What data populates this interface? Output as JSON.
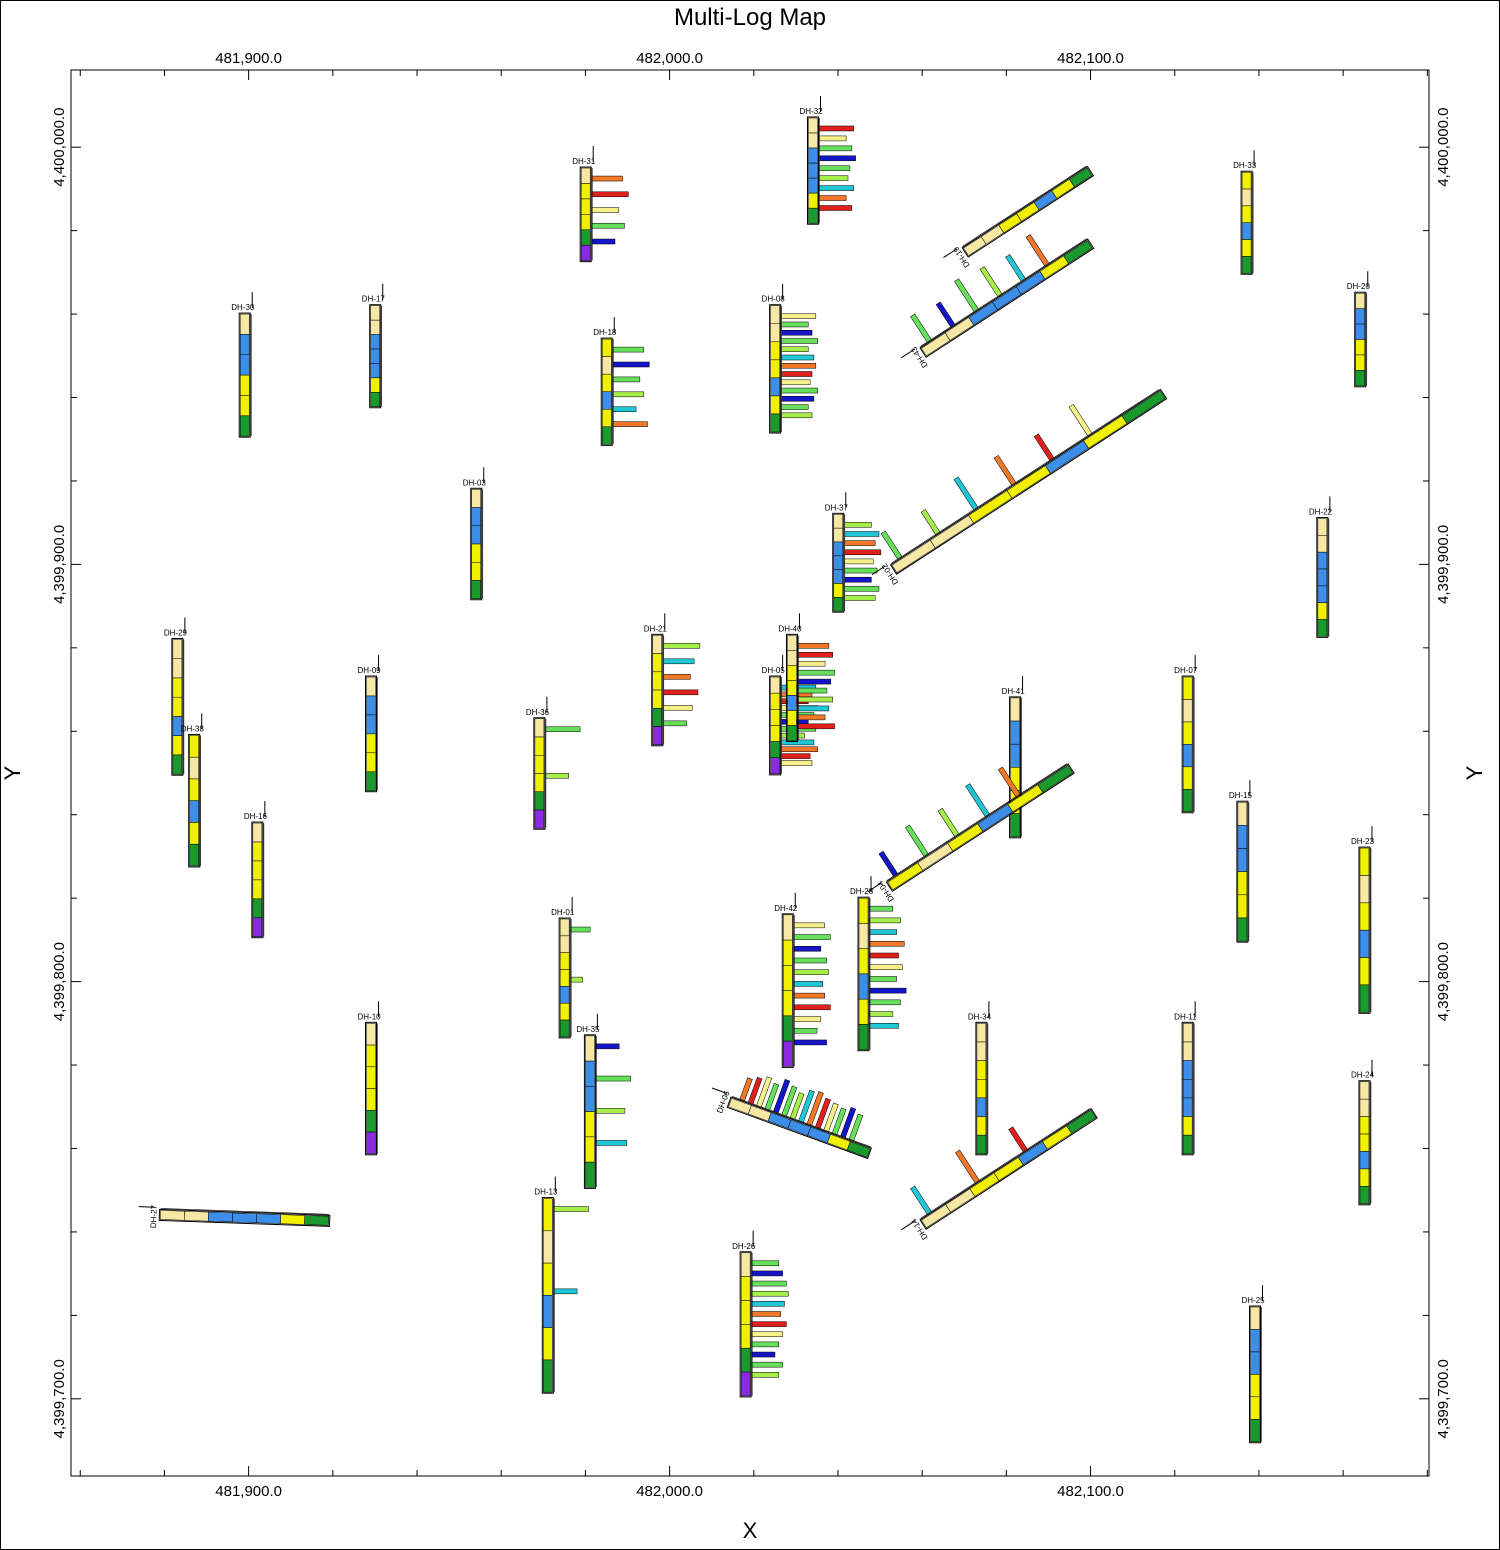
{
  "title": "Multi-Log Map",
  "colors": {
    "sand": "#f7e7a4",
    "yellow": "#f0f000",
    "blue": "#3d8ee8",
    "dark_blue": "#1515c8",
    "green": "#1a9a2c",
    "purple": "#8a2be2",
    "cyan": "#22c7d6",
    "light_green": "#66e05a",
    "lime": "#a8ee4a",
    "orange": "#f07828",
    "red": "#e0201c",
    "light_yellow": "#f6f08a"
  },
  "chart_data": {
    "type": "scatter",
    "title": "Multi-Log Map",
    "xlabel": "X",
    "ylabel": "Y",
    "x_ticks": [
      "481,900.0",
      "482,000.0",
      "482,100.0"
    ],
    "x_tick_values": [
      481900,
      482000,
      482100
    ],
    "y_ticks": [
      "4,400,000.0",
      "4,399,900.0",
      "4,399,800.0",
      "4,399,700.0"
    ],
    "y_tick_values": [
      4400000,
      4399900,
      4399800,
      4399700
    ],
    "xlim": [
      481857.8,
      482180.4
    ],
    "ylim": [
      4399681.5,
      4400018.5
    ],
    "grid": false,
    "log_length_units_note": "",
    "holes": [
      {
        "name": "DH-01",
        "x": 481974.0,
        "y": 4399815.0,
        "len": 28,
        "az": null,
        "bars": [
          0.5,
          0.3
        ]
      },
      {
        "name": "DH-03",
        "x": 481953.0,
        "y": 4399918.0,
        "len": 26,
        "az": null,
        "bars": []
      },
      {
        "name": "DH-05",
        "x": 482024.0,
        "y": 4399873.0,
        "len": 23,
        "az": null,
        "bars": [
          0.9,
          0.8,
          0.7,
          0.95,
          0.85,
          0.7,
          0.9,
          0.6,
          0.85,
          0.95,
          0.75,
          0.8
        ]
      },
      {
        "name": "DH-06",
        "x": 482014.0,
        "y": 4399770.0,
        "len": 35,
        "az": 145,
        "bars": [
          0.6,
          0.7,
          0.8,
          0.7,
          0.9,
          0.8,
          0.7,
          0.85,
          0.9,
          0.8,
          0.75,
          0.7,
          0.8,
          0.7
        ]
      },
      {
        "name": "DH-07",
        "x": 482122.0,
        "y": 4399873.0,
        "len": 32,
        "az": null,
        "bars": []
      },
      {
        "name": "DH-08",
        "x": 482024.0,
        "y": 4399962.0,
        "len": 30,
        "az": null,
        "bars": [
          0.9,
          0.7,
          0.8,
          0.95,
          0.7,
          0.85,
          0.9,
          0.8,
          0.75,
          0.95,
          0.85,
          0.7,
          0.8
        ]
      },
      {
        "name": "DH-09",
        "x": 481928.0,
        "y": 4399873.0,
        "len": 27,
        "az": null,
        "bars": []
      },
      {
        "name": "DH-10",
        "x": 481928.0,
        "y": 4399790.0,
        "len": 31,
        "az": null,
        "bars": []
      },
      {
        "name": "DH-11",
        "x": 482122.0,
        "y": 4399790.0,
        "len": 31,
        "az": null,
        "bars": []
      },
      {
        "name": "DH-13",
        "x": 481970.0,
        "y": 4399748.0,
        "len": 46,
        "az": null,
        "bars": [
          0.9,
          0.6
        ]
      },
      {
        "name": "DH-14",
        "x": 482061.0,
        "y": 4399741.0,
        "len": 48,
        "az": 120,
        "bars": [
          0.8,
          0.95,
          0.7
        ]
      },
      {
        "name": "DH-15",
        "x": 482135.0,
        "y": 4399843.0,
        "len": 33,
        "az": null,
        "bars": []
      },
      {
        "name": "DH-16",
        "x": 481901.0,
        "y": 4399838.0,
        "len": 27,
        "az": null,
        "bars": []
      },
      {
        "name": "DH-17",
        "x": 481929.0,
        "y": 4399962.0,
        "len": 24,
        "az": null,
        "bars": []
      },
      {
        "name": "DH-18",
        "x": 481984.0,
        "y": 4399954.0,
        "len": 25,
        "az": null,
        "bars": [
          0.8,
          0.95,
          0.7,
          0.8,
          0.6,
          0.9
        ]
      },
      {
        "name": "DH-19",
        "x": 482071.0,
        "y": 4399974.0,
        "len": 35,
        "az": 120,
        "bars": []
      },
      {
        "name": "DH-20",
        "x": 482163.0,
        "y": 4399965.0,
        "len": 22,
        "az": null,
        "bars": []
      },
      {
        "name": "DH-21",
        "x": 481996.0,
        "y": 4399883.0,
        "len": 26,
        "az": null,
        "bars": [
          0.95,
          0.8,
          0.7,
          0.9,
          0.75,
          0.6
        ]
      },
      {
        "name": "DH-22",
        "x": 482154.0,
        "y": 4399911.0,
        "len": 28,
        "az": null,
        "bars": []
      },
      {
        "name": "DH-23",
        "x": 482164.0,
        "y": 4399832.0,
        "len": 39,
        "az": null,
        "bars": []
      },
      {
        "name": "DH-24",
        "x": 482164.0,
        "y": 4399776.0,
        "len": 29,
        "az": null,
        "bars": []
      },
      {
        "name": "DH-25",
        "x": 482138.0,
        "y": 4399722.0,
        "len": 32,
        "az": null,
        "bars": []
      },
      {
        "name": "DH-26",
        "x": 482017.0,
        "y": 4399735.0,
        "len": 34,
        "az": null,
        "bars": [
          0.7,
          0.8,
          0.9,
          0.95,
          0.85,
          0.75,
          0.9,
          0.8,
          0.7,
          0.6,
          0.8,
          0.7
        ]
      },
      {
        "name": "DH-27",
        "x": 481879.0,
        "y": 4399743.0,
        "len": 40,
        "az": 127,
        "bars": []
      },
      {
        "name": "DH-28",
        "x": 482045.0,
        "y": 4399820.0,
        "len": 36,
        "az": null,
        "bars": [
          0.6,
          0.8,
          0.7,
          0.9,
          0.75,
          0.85,
          0.7,
          0.95,
          0.8,
          0.6,
          0.75
        ]
      },
      {
        "name": "DH-29",
        "x": 481882.0,
        "y": 4399882.0,
        "len": 32,
        "az": null,
        "bars": []
      },
      {
        "name": "DH-30",
        "x": 481898.0,
        "y": 4399960.0,
        "len": 29,
        "az": null,
        "bars": []
      },
      {
        "name": "DH-31",
        "x": 481979.0,
        "y": 4399995.0,
        "len": 22,
        "az": null,
        "bars": [
          0.8,
          0.95,
          0.7,
          0.85,
          0.6
        ]
      },
      {
        "name": "DH-32",
        "x": 482033.0,
        "y": 4400007.0,
        "len": 25,
        "az": null,
        "bars": [
          0.9,
          0.7,
          0.85,
          0.95,
          0.8,
          0.75,
          0.9,
          0.7,
          0.85
        ]
      },
      {
        "name": "DH-33",
        "x": 482136.0,
        "y": 4399994.0,
        "len": 24,
        "az": null,
        "bars": []
      },
      {
        "name": "DH-34",
        "x": 482073.0,
        "y": 4399790.0,
        "len": 31,
        "az": null,
        "bars": []
      },
      {
        "name": "DH-35",
        "x": 481980.0,
        "y": 4399787.0,
        "len": 36,
        "az": null,
        "bars": [
          0.6,
          0.9,
          0.75,
          0.8
        ]
      },
      {
        "name": "DH-36",
        "x": 481968.0,
        "y": 4399863.0,
        "len": 26,
        "az": null,
        "bars": [
          0.9,
          0.6
        ]
      },
      {
        "name": "DH-37",
        "x": 482039.0,
        "y": 4399912.0,
        "len": 23,
        "az": null,
        "bars": [
          0.7,
          0.9,
          0.8,
          0.95,
          0.75,
          0.85,
          0.7,
          0.9,
          0.8
        ]
      },
      {
        "name": "DH-38",
        "x": 481886.0,
        "y": 4399859.0,
        "len": 31,
        "az": null,
        "bars": []
      },
      {
        "name": "DH-40",
        "x": 482028.0,
        "y": 4399883.0,
        "len": 25,
        "az": null,
        "bars": [
          0.8,
          0.9,
          0.7,
          0.95,
          0.85,
          0.75,
          0.9,
          0.8,
          0.7,
          0.95
        ]
      },
      {
        "name": "DH-41",
        "x": 482081.0,
        "y": 4399868.0,
        "len": 33,
        "az": null,
        "bars": []
      },
      {
        "name": "DH-42",
        "x": 482027.0,
        "y": 4399816.0,
        "len": 36,
        "az": null,
        "bars": [
          0.8,
          0.95,
          0.7,
          0.85,
          0.9,
          0.75,
          0.8,
          0.95,
          0.7,
          0.6,
          0.85
        ]
      },
      {
        "name": "DH-43",
        "x": 482061.0,
        "y": 4399950.0,
        "len": 47,
        "az": 120,
        "bars": [
          0.8,
          0.7,
          0.95,
          0.85,
          0.75,
          0.9
        ]
      },
      {
        "name": "DH-04",
        "x": 482053.0,
        "y": 4399822.0,
        "len": 51,
        "az": 120,
        "bars": [
          0.7,
          0.9,
          0.8,
          0.95,
          0.85
        ]
      },
      {
        "name": "DH-02",
        "x": 482054.0,
        "y": 4399898.0,
        "len": 76,
        "az": 120,
        "bars": [
          0.8,
          0.7,
          0.95,
          0.85,
          0.75,
          0.9
        ]
      }
    ]
  }
}
